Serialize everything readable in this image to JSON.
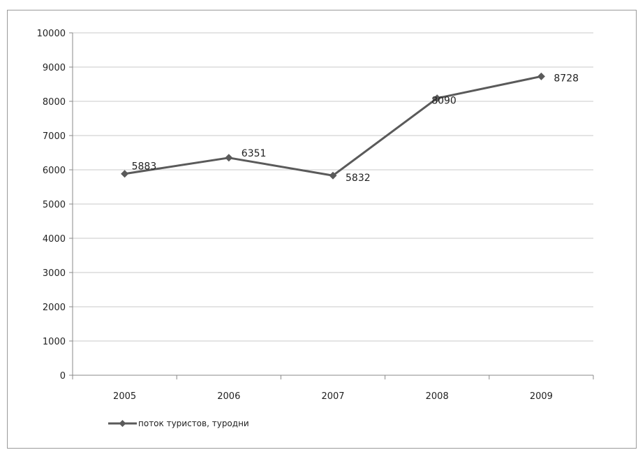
{
  "chart_data": {
    "type": "line",
    "categories": [
      "2005",
      "2006",
      "2007",
      "2008",
      "2009"
    ],
    "series": [
      {
        "name": "поток туристов, туродни",
        "values": [
          5883,
          6351,
          5832,
          8090,
          8728
        ]
      }
    ],
    "data_labels": [
      "5883",
      "6351",
      "5832",
      "8090",
      "8728"
    ],
    "ylim": [
      0,
      10000
    ],
    "yticks": [
      "0",
      "1000",
      "2000",
      "3000",
      "4000",
      "5000",
      "6000",
      "7000",
      "8000",
      "9000",
      "10000"
    ],
    "grid": true,
    "legend_position": "bottom-left",
    "line_color": "#5a5a5a"
  }
}
